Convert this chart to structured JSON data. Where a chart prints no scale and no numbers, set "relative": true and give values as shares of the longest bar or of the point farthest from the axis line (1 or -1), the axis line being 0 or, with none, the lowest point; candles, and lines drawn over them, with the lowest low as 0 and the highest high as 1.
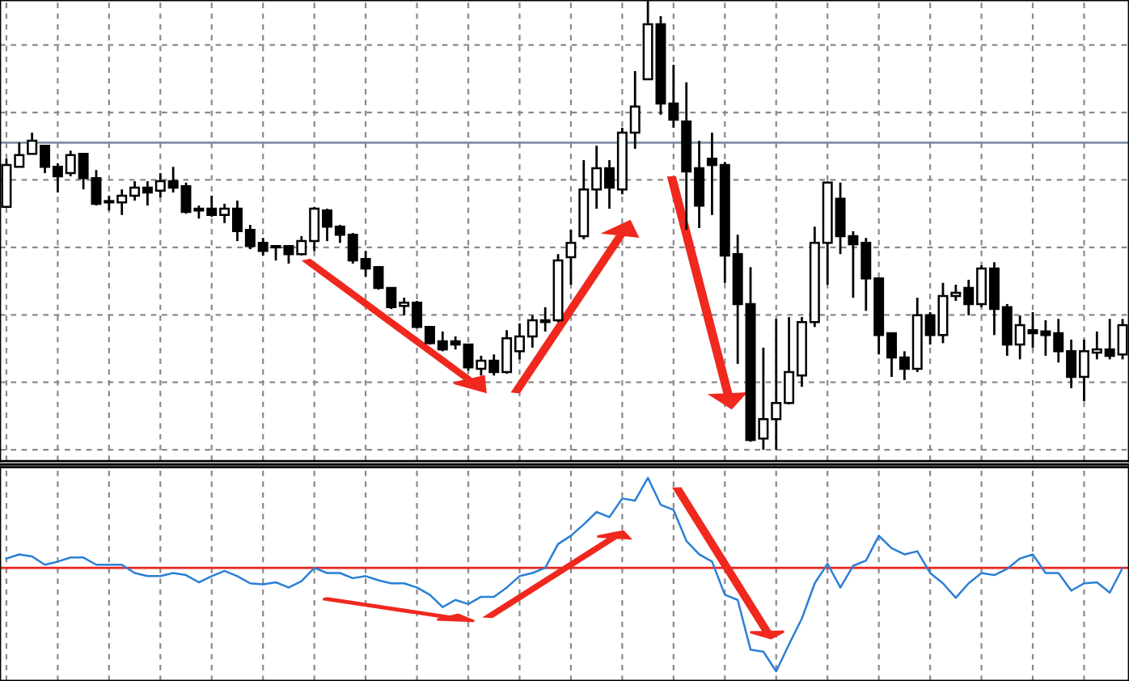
{
  "chart_data": [
    {
      "type": "candlestick",
      "relative": true,
      "grid": true,
      "tick_labels": false,
      "categories": [
        null,
        null,
        null,
        null,
        null,
        null,
        null,
        null,
        null,
        null,
        null,
        null,
        null,
        null,
        null,
        null,
        null,
        null,
        null,
        null,
        null,
        null,
        null,
        null,
        null,
        null,
        null,
        null,
        null,
        null,
        null,
        null,
        null,
        null,
        null,
        null,
        null,
        null,
        null,
        null,
        null,
        null,
        null,
        null,
        null,
        null,
        null,
        null,
        null,
        null,
        null,
        null,
        null,
        null,
        null,
        null,
        null,
        null,
        null,
        null,
        null,
        null,
        null,
        null,
        null,
        null,
        null,
        null,
        null,
        null,
        null,
        null,
        null,
        null,
        null,
        null,
        null,
        null,
        null,
        null,
        null,
        null,
        null,
        null,
        null,
        null,
        null,
        null
      ],
      "ohlc": [
        [
          0.54,
          0.647,
          0.54,
          0.633
        ],
        [
          0.629,
          0.683,
          0.629,
          0.655
        ],
        [
          0.658,
          0.705,
          0.658,
          0.687
        ],
        [
          0.676,
          0.676,
          0.615,
          0.629
        ],
        [
          0.629,
          0.637,
          0.572,
          0.608
        ],
        [
          0.615,
          0.665,
          0.608,
          0.655
        ],
        [
          0.658,
          0.658,
          0.579,
          0.604
        ],
        [
          0.604,
          0.622,
          0.543,
          0.547
        ],
        [
          0.55,
          0.565,
          0.532,
          0.55
        ],
        [
          0.55,
          0.579,
          0.522,
          0.565
        ],
        [
          0.565,
          0.597,
          0.554,
          0.583
        ],
        [
          0.583,
          0.597,
          0.543,
          0.572
        ],
        [
          0.576,
          0.615,
          0.561,
          0.597
        ],
        [
          0.597,
          0.629,
          0.572,
          0.583
        ],
        [
          0.586,
          0.594,
          0.525,
          0.529
        ],
        [
          0.536,
          0.543,
          0.514,
          0.532
        ],
        [
          0.536,
          0.565,
          0.518,
          0.522
        ],
        [
          0.522,
          0.547,
          0.504,
          0.536
        ],
        [
          0.536,
          0.554,
          0.464,
          0.486
        ],
        [
          0.489,
          0.5,
          0.446,
          0.453
        ],
        [
          0.46,
          0.471,
          0.432,
          0.442
        ],
        [
          0.453,
          0.453,
          0.421,
          0.45
        ],
        [
          0.453,
          0.453,
          0.414,
          0.435
        ],
        [
          0.435,
          0.475,
          0.432,
          0.464
        ],
        [
          0.464,
          0.54,
          0.442,
          0.536
        ],
        [
          0.532,
          0.536,
          0.464,
          0.496
        ],
        [
          0.496,
          0.5,
          0.46,
          0.478
        ],
        [
          0.478,
          0.482,
          0.414,
          0.421
        ],
        [
          0.424,
          0.442,
          0.385,
          0.403
        ],
        [
          0.406,
          0.406,
          0.356,
          0.36
        ],
        [
          0.36,
          0.36,
          0.313,
          0.317
        ],
        [
          0.32,
          0.338,
          0.299,
          0.327
        ],
        [
          0.327,
          0.331,
          0.27,
          0.273
        ],
        [
          0.273,
          0.273,
          0.234,
          0.237
        ],
        [
          0.241,
          0.263,
          0.219,
          0.223
        ],
        [
          0.241,
          0.252,
          0.223,
          0.234
        ],
        [
          0.234,
          0.234,
          0.176,
          0.183
        ],
        [
          0.18,
          0.209,
          0.165,
          0.198
        ],
        [
          0.198,
          0.212,
          0.165,
          0.173
        ],
        [
          0.173,
          0.266,
          0.169,
          0.248
        ],
        [
          0.219,
          0.281,
          0.201,
          0.252
        ],
        [
          0.252,
          0.299,
          0.227,
          0.288
        ],
        [
          0.288,
          0.317,
          0.263,
          0.284
        ],
        [
          0.288,
          0.435,
          0.284,
          0.421
        ],
        [
          0.428,
          0.489,
          0.367,
          0.46
        ],
        [
          0.475,
          0.644,
          0.468,
          0.579
        ],
        [
          0.579,
          0.676,
          0.536,
          0.626
        ],
        [
          0.626,
          0.644,
          0.536,
          0.583
        ],
        [
          0.579,
          0.716,
          0.568,
          0.705
        ],
        [
          0.705,
          0.842,
          0.669,
          0.763
        ],
        [
          0.824,
          1,
          0.824,
          0.946
        ],
        [
          0.946,
          0.964,
          0.745,
          0.77
        ],
        [
          0.77,
          0.856,
          0.716,
          0.734
        ],
        [
          0.73,
          0.817,
          0.489,
          0.619
        ],
        [
          0.626,
          0.687,
          0.493,
          0.543
        ],
        [
          0.647,
          0.705,
          0.522,
          0.633
        ],
        [
          0.633,
          0.64,
          0.371,
          0.432
        ],
        [
          0.435,
          0.478,
          0.191,
          0.324
        ],
        [
          0.324,
          0.406,
          0.018,
          0.022
        ],
        [
          0.025,
          0.227,
          0,
          0.068
        ],
        [
          0.068,
          0.291,
          0,
          0.104
        ],
        [
          0.104,
          0.295,
          0.101,
          0.173
        ],
        [
          0.165,
          0.295,
          0.14,
          0.284
        ],
        [
          0.284,
          0.496,
          0.273,
          0.46
        ],
        [
          0.46,
          0.597,
          0.367,
          0.594
        ],
        [
          0.558,
          0.594,
          0.435,
          0.475
        ],
        [
          0.475,
          0.486,
          0.338,
          0.457
        ],
        [
          0.46,
          0.471,
          0.309,
          0.381
        ],
        [
          0.381,
          0.381,
          0.212,
          0.255
        ],
        [
          0.259,
          0.259,
          0.162,
          0.205
        ],
        [
          0.205,
          0.219,
          0.155,
          0.18
        ],
        [
          0.18,
          0.338,
          0.173,
          0.299
        ],
        [
          0.299,
          0.306,
          0.234,
          0.255
        ],
        [
          0.255,
          0.371,
          0.237,
          0.342
        ],
        [
          0.342,
          0.367,
          0.331,
          0.349
        ],
        [
          0.36,
          0.378,
          0.299,
          0.324
        ],
        [
          0.324,
          0.41,
          0.317,
          0.403
        ],
        [
          0.403,
          0.417,
          0.255,
          0.313
        ],
        [
          0.317,
          0.324,
          0.209,
          0.234
        ],
        [
          0.234,
          0.299,
          0.201,
          0.277
        ],
        [
          0.266,
          0.306,
          0.227,
          0.259
        ],
        [
          0.263,
          0.288,
          0.209,
          0.255
        ],
        [
          0.259,
          0.291,
          0.194,
          0.219
        ],
        [
          0.219,
          0.245,
          0.137,
          0.162
        ],
        [
          0.162,
          0.245,
          0.108,
          0.219
        ],
        [
          0.216,
          0.263,
          0.201,
          0.223
        ],
        [
          0.223,
          0.291,
          0.201,
          0.209
        ],
        [
          0.212,
          0.291,
          0.201,
          0.277
        ]
      ],
      "ref_lines": [
        {
          "axis": "y",
          "value": 0.683,
          "color": "#7f8fa6"
        }
      ]
    },
    {
      "type": "line",
      "relative": true,
      "grid": "x",
      "tick_labels": false,
      "categories": [
        null,
        null,
        null,
        null,
        null,
        null,
        null,
        null,
        null,
        null,
        null,
        null,
        null,
        null,
        null,
        null,
        null,
        null,
        null,
        null,
        null,
        null,
        null,
        null,
        null,
        null,
        null,
        null,
        null,
        null,
        null,
        null,
        null,
        null,
        null,
        null,
        null,
        null,
        null,
        null,
        null,
        null,
        null,
        null,
        null,
        null,
        null,
        null,
        null,
        null,
        null,
        null,
        null,
        null,
        null,
        null,
        null,
        null,
        null,
        null,
        null,
        null,
        null,
        null,
        null,
        null,
        null,
        null,
        null,
        null,
        null,
        null,
        null,
        null,
        null,
        null,
        null,
        null,
        null,
        null,
        null,
        null,
        null,
        null,
        null,
        null,
        null,
        null
      ],
      "series": [
        {
          "color": "#2b7fd6",
          "values": [
            0.09,
            0.13,
            0.11,
            0.03,
            0.06,
            0.1,
            0.1,
            0.03,
            0.03,
            0.03,
            -0.05,
            -0.08,
            -0.08,
            -0.05,
            -0.07,
            -0.14,
            -0.08,
            -0.03,
            -0.08,
            -0.15,
            -0.16,
            -0.14,
            -0.19,
            -0.13,
            0,
            -0.05,
            -0.05,
            -0.1,
            -0.08,
            -0.12,
            -0.15,
            -0.15,
            -0.19,
            -0.26,
            -0.38,
            -0.31,
            -0.35,
            -0.28,
            -0.28,
            -0.19,
            -0.08,
            -0.05,
            0,
            0.23,
            0.31,
            0.42,
            0.54,
            0.49,
            0.67,
            0.65,
            0.87,
            0.61,
            0.56,
            0.26,
            0.13,
            0.06,
            -0.26,
            -0.31,
            -0.79,
            -0.81,
            -1,
            -0.74,
            -0.49,
            -0.15,
            0.04,
            -0.19,
            0.02,
            0.07,
            0.31,
            0.19,
            0.13,
            0.16,
            -0.05,
            -0.15,
            -0.29,
            -0.15,
            -0.05,
            -0.07,
            -0.01,
            0.09,
            0.13,
            -0.05,
            -0.05,
            -0.22,
            -0.15,
            -0.14,
            -0.24,
            0
          ]
        }
      ],
      "ref_lines": [
        {
          "axis": "y",
          "value": 0,
          "color": "#e8251f"
        }
      ]
    }
  ]
}
